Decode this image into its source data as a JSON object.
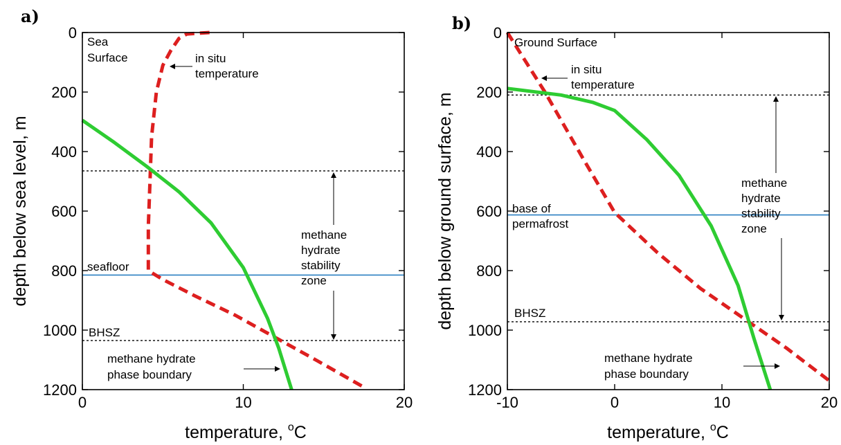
{
  "chart_data": [
    {
      "type": "line",
      "panel_label": "a)",
      "xlabel": "temperature, ",
      "xlabel_unit": "C",
      "xlabel_degree": "o",
      "ylabel": "depth below sea level, m",
      "xlim": [
        0,
        20
      ],
      "ylim": [
        1200,
        0
      ],
      "xticks": [
        0,
        10,
        20
      ],
      "yticks": [
        0,
        200,
        400,
        600,
        800,
        1000,
        1200
      ],
      "grid": false,
      "colors": {
        "in_situ": "#dd1f1f",
        "phase": "#2ecc32",
        "horizontal": "#2a7fc1"
      },
      "series": [
        {
          "key": "in_situ",
          "style": "dashed",
          "x": [
            7.9,
            6.5,
            6.0,
            5.5,
            5.0,
            4.6,
            4.3,
            4.2,
            4.1,
            4.1,
            5.0,
            7.0,
            9.5,
            12.0,
            14.5,
            17.6
          ],
          "y": [
            0,
            5,
            20,
            60,
            110,
            200,
            350,
            500,
            650,
            800,
            830,
            885,
            950,
            1025,
            1100,
            1195
          ]
        },
        {
          "key": "phase",
          "style": "solid",
          "x": [
            0,
            2.0,
            4.0,
            6.0,
            8.0,
            10.0,
            11.5,
            12.2,
            13.0
          ],
          "y": [
            295,
            370,
            450,
            535,
            640,
            790,
            960,
            1060,
            1200
          ]
        }
      ],
      "hlines": [
        {
          "y": 465,
          "style": "dotted"
        },
        {
          "y": 815,
          "style": "solid",
          "label": "seafloor"
        },
        {
          "y": 1035,
          "style": "dotted",
          "label": "BHSZ"
        }
      ],
      "annotations": {
        "surface": [
          "Sea",
          "Surface"
        ],
        "in_situ": [
          "in situ",
          "temperature"
        ],
        "zone": [
          "methane",
          "hydrate",
          "stability",
          "zone"
        ],
        "phase": [
          "methane hydrate",
          "phase boundary"
        ]
      }
    },
    {
      "type": "line",
      "panel_label": "b)",
      "xlabel": "temperature, ",
      "xlabel_unit": "C",
      "xlabel_degree": "o",
      "ylabel": "depth below ground surface, m",
      "xlim": [
        -10,
        20
      ],
      "ylim": [
        1200,
        0
      ],
      "xticks": [
        -10,
        0,
        10,
        20
      ],
      "yticks": [
        0,
        200,
        400,
        600,
        800,
        1000,
        1200
      ],
      "grid": false,
      "colors": {
        "in_situ": "#dd1f1f",
        "phase": "#2ecc32",
        "horizontal": "#2a7fc1"
      },
      "series": [
        {
          "key": "in_situ",
          "style": "dashed",
          "x": [
            -10,
            -6.5,
            -3.0,
            0,
            4.0,
            8.0,
            12.0,
            16.0,
            20.0
          ],
          "y": [
            0,
            200,
            420,
            605,
            740,
            860,
            960,
            1060,
            1170
          ]
        },
        {
          "key": "phase",
          "style": "solid",
          "x": [
            -10,
            -5.0,
            -2.0,
            0,
            3.0,
            6.0,
            9.0,
            11.5,
            13.0,
            14.5
          ],
          "y": [
            188,
            210,
            235,
            262,
            360,
            480,
            650,
            850,
            1030,
            1200
          ]
        }
      ],
      "hlines": [
        {
          "y": 210,
          "style": "dotted"
        },
        {
          "y": 613,
          "style": "solid",
          "label": "base of permafrost"
        },
        {
          "y": 972,
          "style": "dotted",
          "label": "BHSZ"
        }
      ],
      "annotations": {
        "surface": [
          "Ground Surface"
        ],
        "in_situ": [
          "in situ",
          "temperature"
        ],
        "zone": [
          "methane",
          "hydrate",
          "stability",
          "zone"
        ],
        "phase": [
          "methane hydrate",
          "phase boundary"
        ],
        "permafrost": [
          "base of",
          "permafrost"
        ]
      }
    }
  ]
}
